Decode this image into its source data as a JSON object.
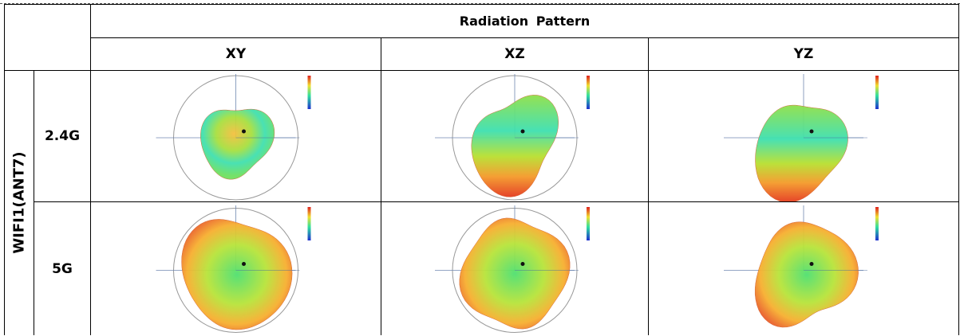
{
  "table": {
    "title": "Radiation Pattern",
    "columns": [
      "XY",
      "XZ",
      "YZ"
    ],
    "group": "WIFI1(ANT7)",
    "rows": [
      "2.4G",
      "5G"
    ]
  }
}
